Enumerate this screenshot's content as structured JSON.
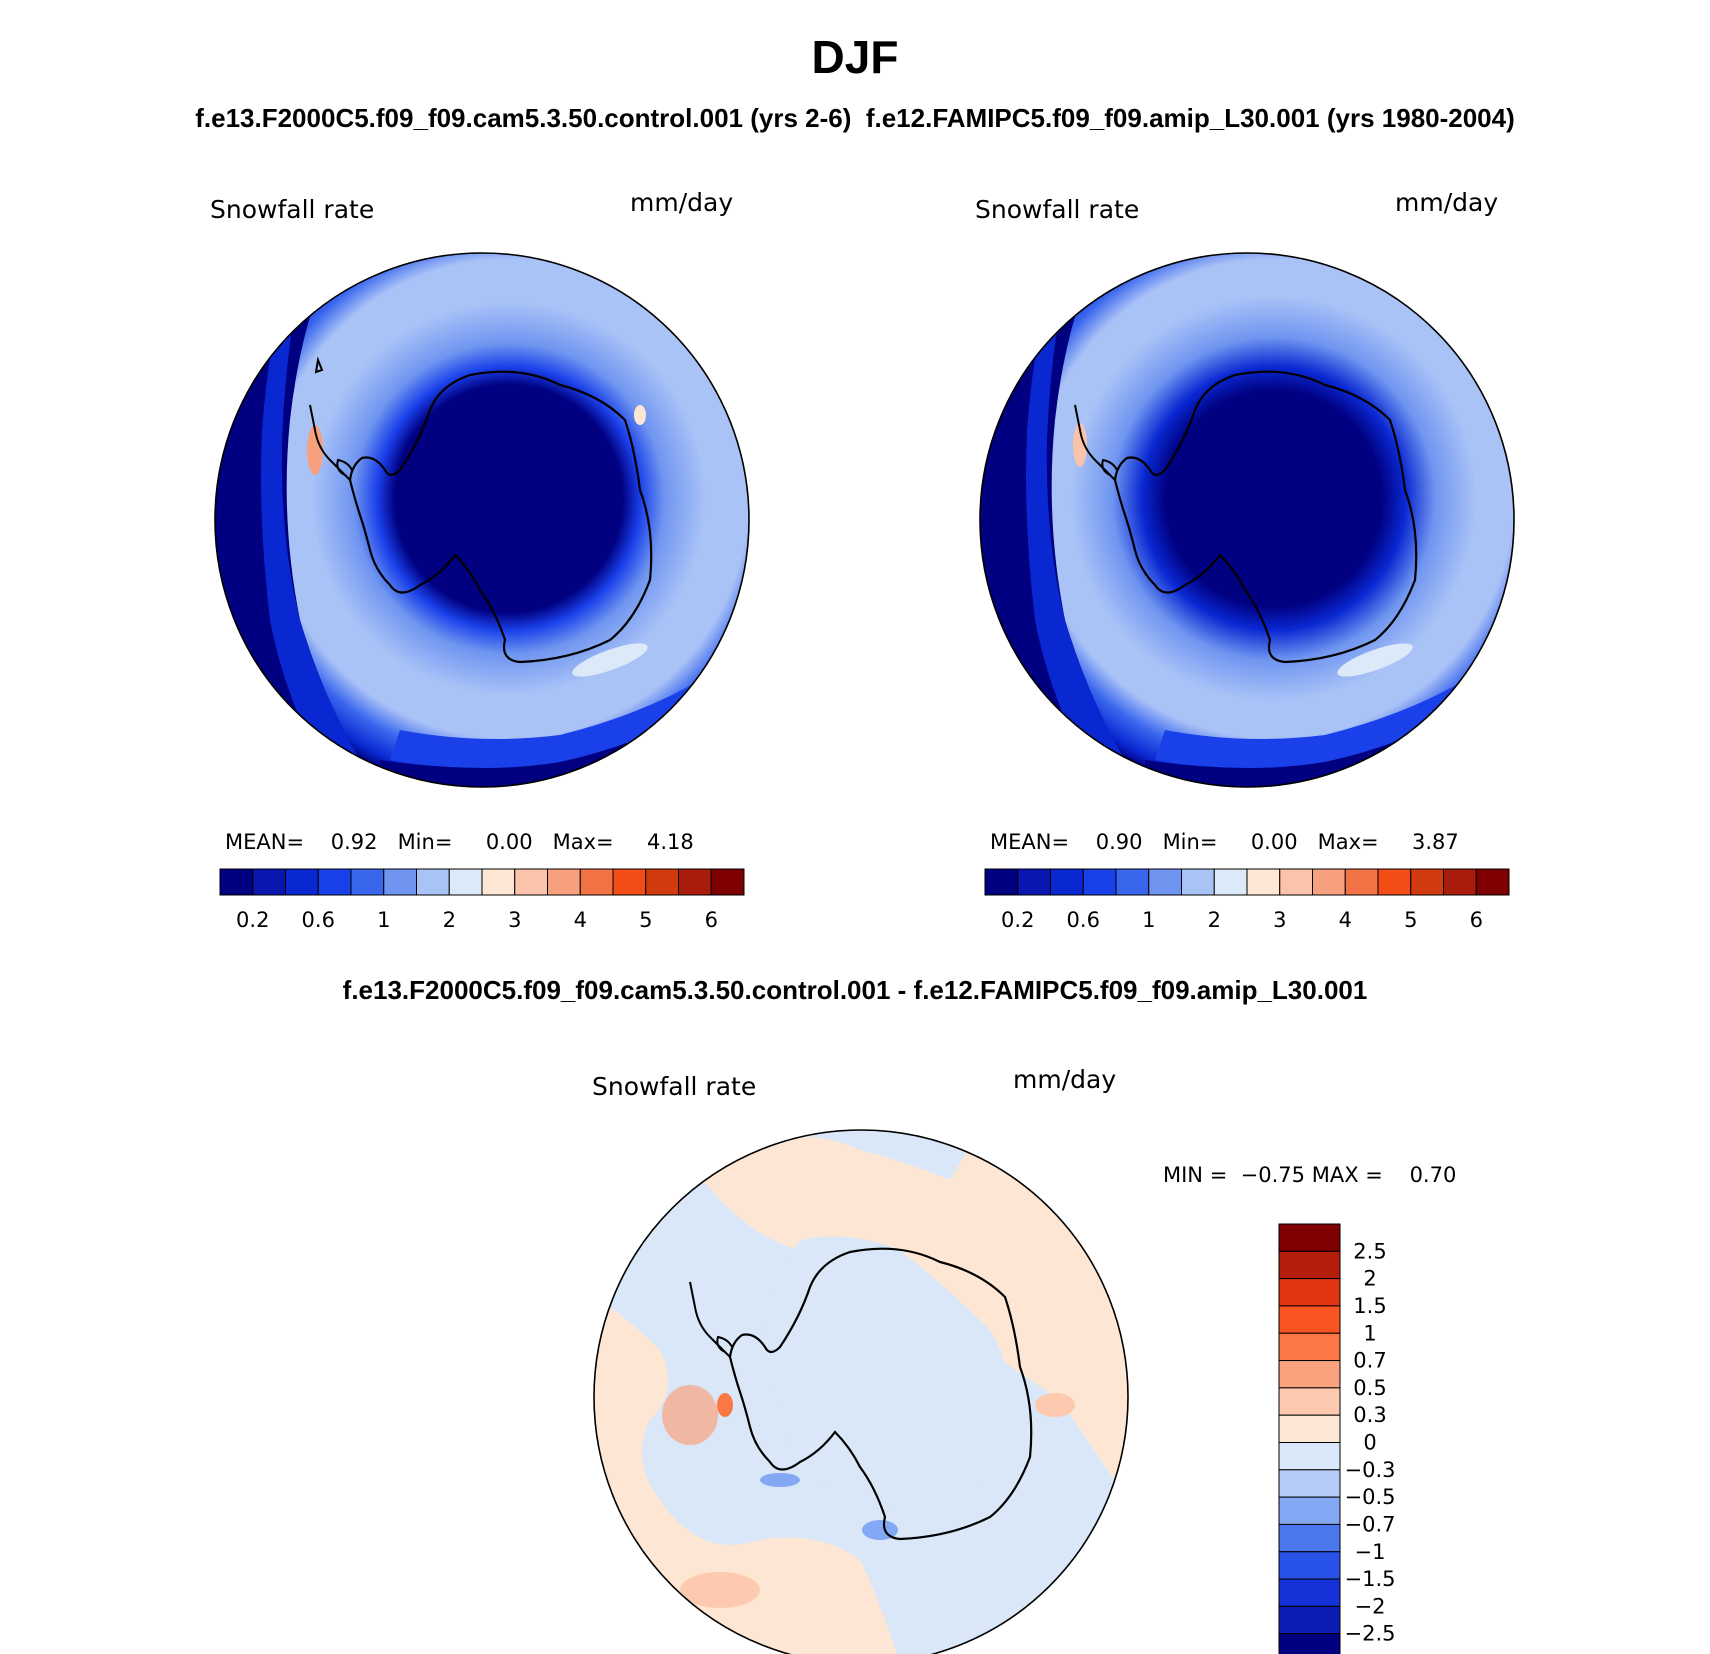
{
  "title": "DJF",
  "subtitle_left": "f.e13.F2000C5.f09_f09.cam5.3.50.control.001 (yrs 2-6)",
  "subtitle_right": "f.e12.FAMIPC5.f09_f09.amip_L30.001 (yrs 1980-2004)",
  "diff_title": "f.e13.F2000C5.f09_f09.cam5.3.50.control.001 - f.e12.FAMIPC5.f09_f09.amip_L30.001",
  "panels": [
    {
      "variable": "Snowfall rate",
      "units": "mm/day",
      "mean_label": "MEAN=",
      "mean": "0.92",
      "min_label": "Min=",
      "min": "0.00",
      "max_label": "Max=",
      "max": "4.18"
    },
    {
      "variable": "Snowfall rate",
      "units": "mm/day",
      "mean_label": "MEAN=",
      "mean": "0.90",
      "min_label": "Min=",
      "min": "0.00",
      "max_label": "Max=",
      "max": "3.87"
    }
  ],
  "diff_panel": {
    "variable": "Snowfall rate",
    "units": "mm/day",
    "min_label": "MIN =",
    "min": "−0.75",
    "max_label": "MAX =",
    "max": "0.70"
  },
  "colorbar_abs": {
    "colors": [
      "#000080",
      "#0a16b0",
      "#0a28d2",
      "#1a40ea",
      "#3a66ee",
      "#6f95f0",
      "#aac3f7",
      "#dbe9f9",
      "#fde7d4",
      "#fbc3aa",
      "#f6a07e",
      "#f37245",
      "#f24d16",
      "#d23a10",
      "#a91c0c",
      "#7f0000"
    ],
    "tick_labels": [
      "0.2",
      "0.6",
      "1",
      "2",
      "3",
      "4",
      "5",
      "6"
    ]
  },
  "colorbar_diff": {
    "colors": [
      "#7f0000",
      "#b41e0a",
      "#e03412",
      "#fa5520",
      "#fb7846",
      "#f9a27e",
      "#fdcab0",
      "#fde7d4",
      "#d9e7f8",
      "#b4cbf8",
      "#83a8f4",
      "#4b78ec",
      "#2852e8",
      "#1432d8",
      "#0a1eb4",
      "#000080"
    ],
    "tick_labels": [
      "2.5",
      "2",
      "1.5",
      "1",
      "0.7",
      "0.5",
      "0.3",
      "0",
      "−0.3",
      "−0.5",
      "−0.7",
      "−1",
      "−1.5",
      "−2",
      "−2.5"
    ]
  }
}
